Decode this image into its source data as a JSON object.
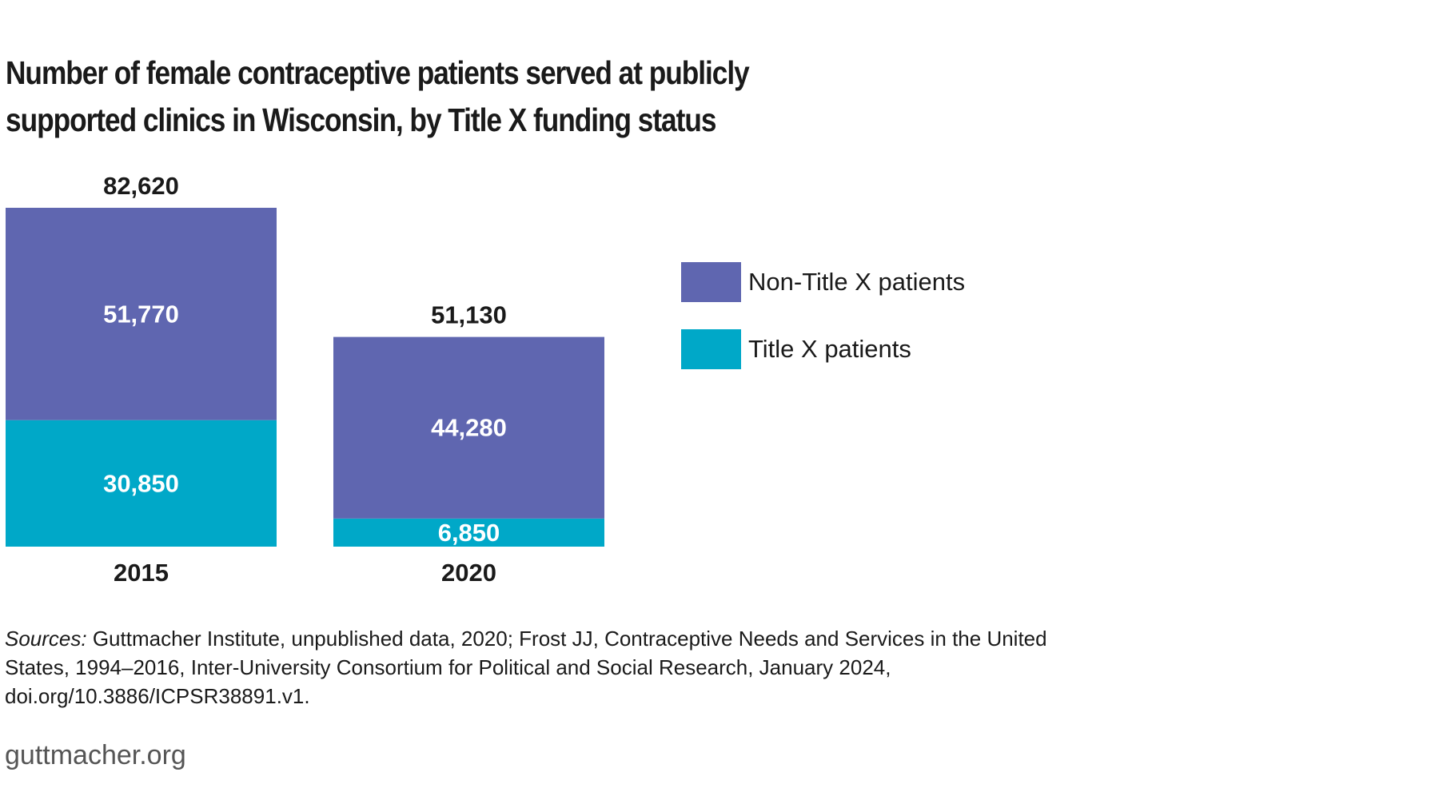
{
  "chart_data": {
    "type": "bar",
    "stacked": true,
    "title": "Number of female contraceptive patients served at publicly supported clinics in Wisconsin, by Title X funding status",
    "categories": [
      "2015",
      "2020"
    ],
    "totals": [
      82620,
      51130
    ],
    "total_labels": [
      "82,620",
      "51,130"
    ],
    "series": [
      {
        "name": "Title X patients",
        "color": "#00a8c8",
        "values": [
          30850,
          6850
        ],
        "labels": [
          "30,850",
          "6,850"
        ]
      },
      {
        "name": "Non-Title X patients",
        "color": "#5f66b0",
        "values": [
          51770,
          44280
        ],
        "labels": [
          "51,770",
          "44,280"
        ]
      }
    ],
    "legend_order": [
      "Non-Title X patients",
      "Title X patients"
    ],
    "legend_position": "right",
    "xlabel": "",
    "ylabel": "",
    "grid": false
  },
  "source": {
    "prefix": "Sources:",
    "text": " Guttmacher Institute, unpublished data, 2020; Frost JJ, Contraceptive Needs and Services in the United States, 1994–2016, Inter-University Consortium for Political and Social Research, January 2024, doi.org/10.3886/ICPSR38891.v1."
  },
  "footer": {
    "site": "guttmacher.org"
  }
}
